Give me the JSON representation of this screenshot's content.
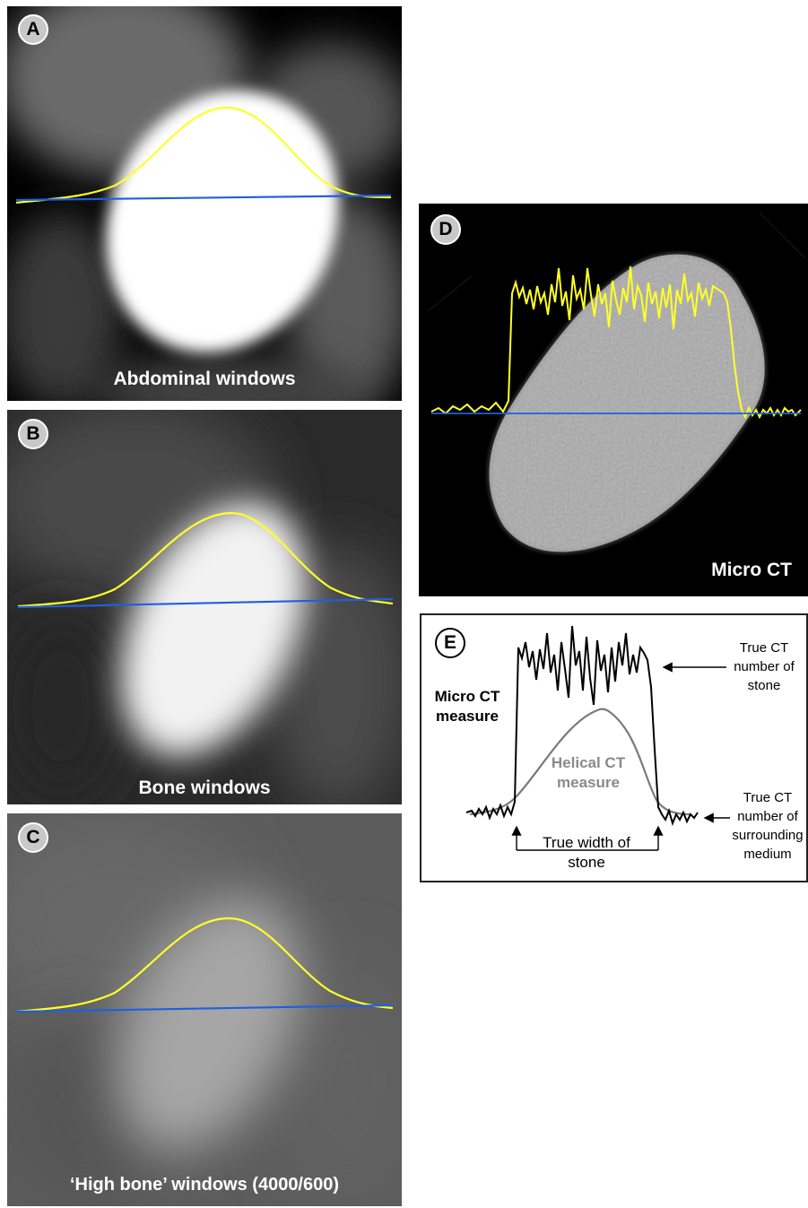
{
  "panels": {
    "a": {
      "label": "A",
      "caption": "Abdominal windows"
    },
    "b": {
      "label": "B",
      "caption": "Bone windows"
    },
    "c": {
      "label": "C",
      "caption": "‘High bone’ windows (4000/600)"
    },
    "d": {
      "label": "D",
      "caption": "Micro CT"
    },
    "e": {
      "label": "E",
      "micro_ct_measure": "Micro CT measure",
      "helical_ct_measure": "Helical CT measure",
      "true_ct_stone": "True CT number of stone",
      "true_ct_medium": "True CT number of surrounding medium",
      "true_width": "True width of stone"
    }
  },
  "colors": {
    "profile": "#ffff2a",
    "baseline": "#1f5fe0",
    "helical": "#7a7a7a"
  }
}
